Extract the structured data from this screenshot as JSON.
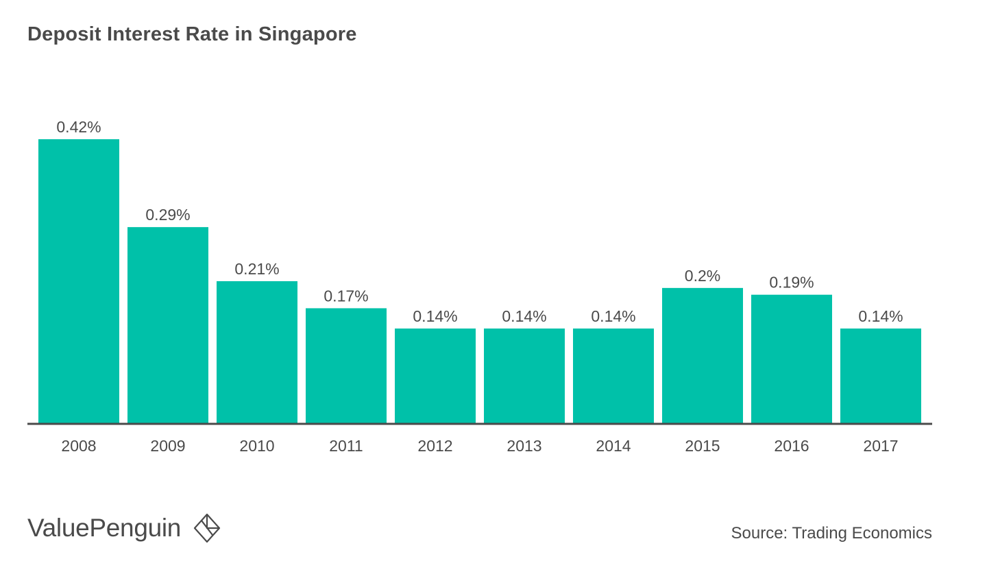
{
  "chart_data": {
    "type": "bar",
    "title": "Deposit Interest Rate in Singapore",
    "categories": [
      "2008",
      "2009",
      "2010",
      "2011",
      "2012",
      "2013",
      "2014",
      "2015",
      "2016",
      "2017"
    ],
    "values": [
      0.42,
      0.29,
      0.21,
      0.17,
      0.14,
      0.14,
      0.14,
      0.2,
      0.19,
      0.14
    ],
    "data_labels": [
      "0.42%",
      "0.29%",
      "0.21%",
      "0.17%",
      "0.14%",
      "0.14%",
      "0.14%",
      "0.2%",
      "0.19%",
      "0.14%"
    ],
    "xlabel": "",
    "ylabel": "",
    "ylim": [
      0,
      0.42
    ],
    "grid": false,
    "bar_color": "#00c1a9",
    "axis_color": "#4a4a4a"
  },
  "branding": {
    "logo_text": "ValuePenguin",
    "logo_icon": "diamond-penguin-icon"
  },
  "source": "Source: Trading Economics"
}
